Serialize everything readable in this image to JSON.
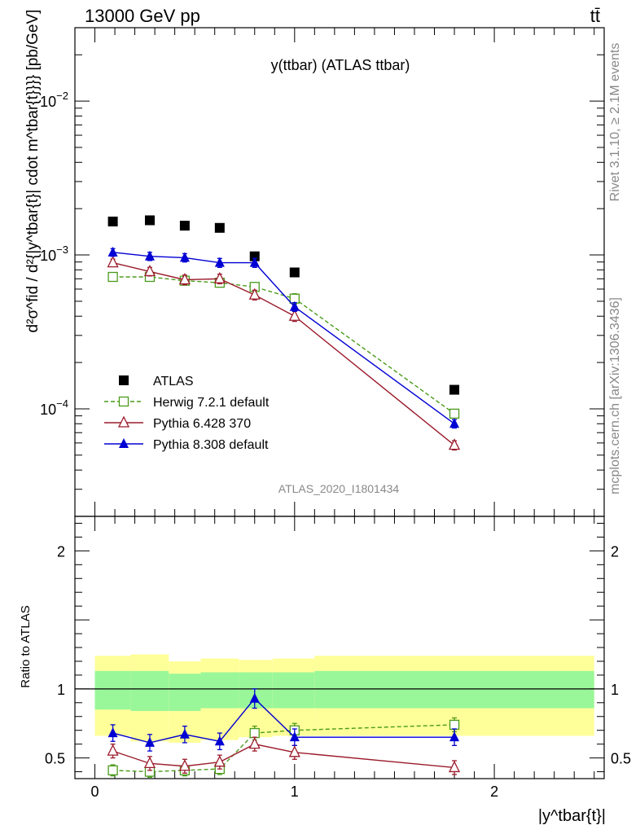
{
  "header": {
    "left": "13000 GeV pp",
    "right": "tt̄"
  },
  "side_text": {
    "rivet": "Rivet 3.1.10, ≥ 2.1M events",
    "mcplots": "mcplots.cern.ch [arXiv:1306.3436]"
  },
  "watermark": "ATLAS_2020_I1801434",
  "labels": {
    "y_main": "d²σ^fid / d²{|y^tbar{t}| cdot m^tbar{t}}}} [pb/GeV]",
    "y_ratio": "Ratio to ATLAS",
    "x_main": "|y^tbar{t}|"
  },
  "chart_data": [
    {
      "type": "scatter",
      "title": "y(ttbar) (ATLAS ttbar)",
      "yscale": "log",
      "xlim": [
        -0.1,
        2.55
      ],
      "ylim": [
        2e-05,
        0.03
      ],
      "legend_position": "middle-left",
      "x": [
        0.09,
        0.275,
        0.45,
        0.625,
        0.8,
        1.0,
        1.8
      ],
      "series": [
        {
          "name": "ATLAS",
          "color": "#000000",
          "marker": "square-filled",
          "line": "none",
          "values": [
            0.00165,
            0.00168,
            0.00155,
            0.0015,
            0.00098,
            0.00077,
            0.000133
          ],
          "errors": [
            0,
            0,
            0,
            0,
            0,
            0,
            0
          ]
        },
        {
          "name": "Herwig 7.2.1 default",
          "color": "#4a9a1a",
          "marker": "square-open",
          "line": "dashed",
          "values": [
            0.00072,
            0.00072,
            0.00068,
            0.00066,
            0.00062,
            0.00052,
            9.3e-05
          ],
          "errors": [
            4e-05,
            4e-05,
            4e-05,
            4e-05,
            4e-05,
            4e-05,
            5e-06
          ]
        },
        {
          "name": "Pythia 6.428 370",
          "color": "#9b1b2b",
          "marker": "triangle-open",
          "line": "solid",
          "values": [
            0.00089,
            0.00078,
            0.00069,
            0.0007,
            0.00055,
            0.0004,
            5.8e-05
          ],
          "errors": [
            5e-05,
            5e-05,
            5e-05,
            5e-05,
            4e-05,
            3e-05,
            4e-06
          ]
        },
        {
          "name": "Pythia 8.308 default",
          "color": "#0000d4",
          "marker": "triangle-filled",
          "line": "solid",
          "values": [
            0.00104,
            0.00098,
            0.00096,
            0.00089,
            0.00089,
            0.00046,
            8e-05
          ],
          "errors": [
            6e-05,
            6e-05,
            6e-05,
            6e-05,
            6e-05,
            3e-05,
            5e-06
          ]
        }
      ]
    },
    {
      "type": "scatter",
      "title": "",
      "ylabel": "Ratio to ATLAS",
      "xlabel": "|y^tbar{t}|",
      "xlim": [
        -0.1,
        2.55
      ],
      "ylim": [
        0.35,
        2.25
      ],
      "x_ticks": [
        "0",
        "1",
        "2"
      ],
      "y_ticks": [
        "0.5",
        "1",
        "2"
      ],
      "reference_line": 1.0,
      "bands": {
        "edges": [
          0.0,
          0.18,
          0.37,
          0.53,
          0.72,
          0.89,
          1.1,
          2.5
        ],
        "inner": {
          "color": "#99f799",
          "low": [
            0.85,
            0.84,
            0.84,
            0.86,
            0.86,
            0.86,
            0.86,
            0.86
          ],
          "high": [
            1.13,
            1.13,
            1.11,
            1.12,
            1.12,
            1.12,
            1.13,
            1.13
          ]
        },
        "outer": {
          "color": "#ffff99",
          "low": [
            0.66,
            0.62,
            0.61,
            0.63,
            0.65,
            0.66,
            0.66,
            0.66
          ],
          "high": [
            1.24,
            1.25,
            1.2,
            1.22,
            1.21,
            1.22,
            1.24,
            1.24
          ]
        }
      },
      "x": [
        0.09,
        0.275,
        0.45,
        0.625,
        0.8,
        1.0,
        1.8
      ],
      "series": [
        {
          "name": "Herwig 7.2.1 default",
          "color": "#4a9a1a",
          "marker": "square-open",
          "line": "dashed",
          "values": [
            0.41,
            0.4,
            0.41,
            0.42,
            0.68,
            0.7,
            0.74
          ],
          "errors": [
            0.04,
            0.04,
            0.04,
            0.04,
            0.05,
            0.05,
            0.05
          ]
        },
        {
          "name": "Pythia 6.428 370",
          "color": "#9b1b2b",
          "marker": "triangle-open",
          "line": "solid",
          "values": [
            0.55,
            0.46,
            0.44,
            0.47,
            0.6,
            0.54,
            0.43
          ],
          "errors": [
            0.05,
            0.05,
            0.05,
            0.05,
            0.05,
            0.05,
            0.05
          ]
        },
        {
          "name": "Pythia 8.308 default",
          "color": "#0000d4",
          "marker": "triangle-filled",
          "line": "solid",
          "values": [
            0.68,
            0.61,
            0.67,
            0.62,
            0.93,
            0.65,
            0.65
          ],
          "errors": [
            0.06,
            0.06,
            0.06,
            0.06,
            0.07,
            0.06,
            0.06
          ]
        }
      ]
    }
  ]
}
